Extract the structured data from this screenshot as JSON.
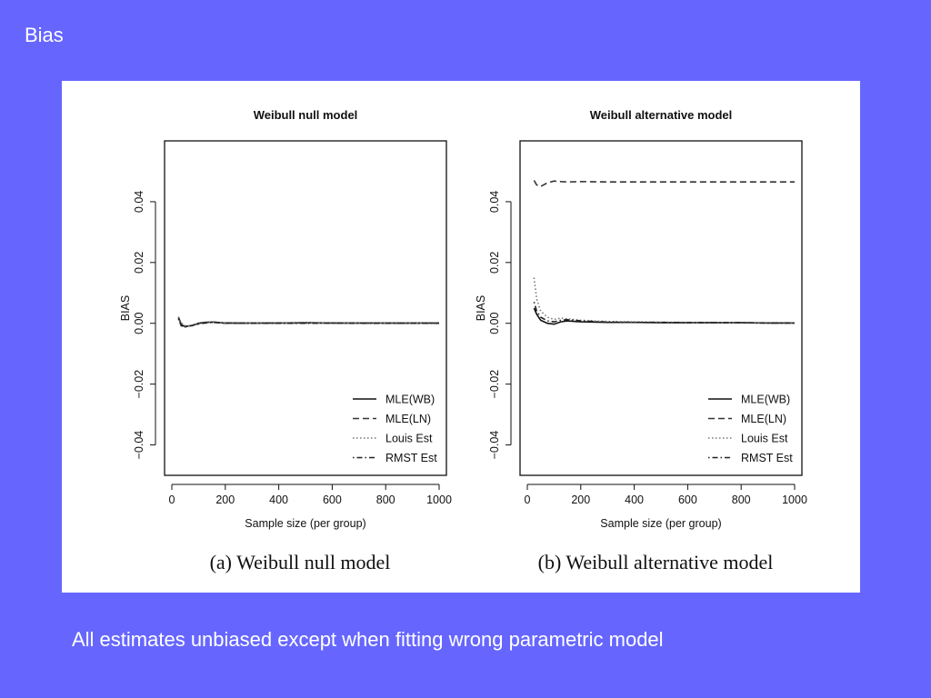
{
  "slide": {
    "title": "Bias",
    "caption": "All estimates unbiased except when fitting wrong parametric model"
  },
  "colors": {
    "background": "#6666ff",
    "panel": "#ffffff",
    "series": [
      "#111111",
      "#333333",
      "#777777",
      "#222222"
    ]
  },
  "chart_data": [
    {
      "type": "line",
      "title": "Weibull null model",
      "subcaption": "(a) Weibull null model",
      "xlabel": "Sample size (per group)",
      "ylabel": "BIAS",
      "xlim": [
        0,
        1000
      ],
      "ylim": [
        -0.05,
        0.06
      ],
      "xticks": [
        0,
        200,
        400,
        600,
        800,
        1000
      ],
      "xtick_labels": [
        "0",
        "200",
        "400",
        "600",
        "800",
        "1000"
      ],
      "yticks": [
        -0.04,
        -0.02,
        0.0,
        0.02,
        0.04
      ],
      "ytick_labels": [
        "−0.04",
        "−0.02",
        "0.00",
        "0.02",
        "0.04"
      ],
      "legend_position": "bottom-right",
      "x": [
        25,
        35,
        50,
        75,
        100,
        125,
        150,
        200,
        300,
        400,
        500,
        600,
        700,
        800,
        900,
        1000
      ],
      "series": [
        {
          "name": "MLE(WB)",
          "dash": "solid",
          "values": [
            0.002,
            -0.0005,
            -0.001,
            -0.0008,
            0.0,
            0.0003,
            0.0004,
            0.0001,
            0.0001,
            0.0001,
            0.0002,
            0.0001,
            0.0001,
            0.0001,
            0.0001,
            0.0001
          ]
        },
        {
          "name": "MLE(LN)",
          "dash": "dashed",
          "values": [
            0.0018,
            -0.0003,
            -0.0012,
            -0.0006,
            -0.0002,
            0.0002,
            0.0005,
            0.0,
            0.0,
            0.0001,
            0.0001,
            0.0001,
            0.0001,
            0.0,
            0.0,
            0.0
          ]
        },
        {
          "name": "Louis Est",
          "dash": "dotted",
          "values": [
            0.0022,
            0.0002,
            -0.0008,
            -0.0009,
            0.0001,
            0.0004,
            0.0003,
            0.0002,
            0.0001,
            0.0002,
            0.0001,
            0.0001,
            0.0001,
            0.0001,
            0.0001,
            0.0001
          ]
        },
        {
          "name": "RMST Est",
          "dash": "dotdash",
          "values": [
            0.0015,
            -0.0008,
            -0.0011,
            -0.0007,
            -0.0001,
            0.0001,
            0.0003,
            0.0001,
            0.0,
            0.0,
            0.0,
            0.0001,
            0.0,
            0.0,
            0.0,
            0.0
          ]
        }
      ]
    },
    {
      "type": "line",
      "title": "Weibull alternative model",
      "subcaption": "(b) Weibull alternative model",
      "xlabel": "Sample size (per group)",
      "ylabel": "BIAS",
      "xlim": [
        0,
        1000
      ],
      "ylim": [
        -0.05,
        0.06
      ],
      "xticks": [
        0,
        200,
        400,
        600,
        800,
        1000
      ],
      "xtick_labels": [
        "0",
        "200",
        "400",
        "600",
        "800",
        "1000"
      ],
      "yticks": [
        -0.04,
        -0.02,
        0.0,
        0.02,
        0.04
      ],
      "ytick_labels": [
        "−0.04",
        "−0.02",
        "0.00",
        "0.02",
        "0.04"
      ],
      "legend_position": "bottom-right",
      "x": [
        25,
        35,
        50,
        75,
        100,
        125,
        150,
        200,
        300,
        400,
        500,
        600,
        700,
        800,
        900,
        1000
      ],
      "series": [
        {
          "name": "MLE(WB)",
          "dash": "solid",
          "values": [
            0.005,
            0.003,
            0.001,
            0.0,
            -0.0003,
            0.0005,
            0.0008,
            0.0005,
            0.0003,
            0.0003,
            0.0002,
            0.0002,
            0.0002,
            0.0002,
            0.0001,
            0.0001
          ]
        },
        {
          "name": "MLE(LN)",
          "dash": "dashed",
          "values": [
            0.047,
            0.0455,
            0.045,
            0.0462,
            0.0468,
            0.0466,
            0.0465,
            0.0466,
            0.0465,
            0.0465,
            0.0465,
            0.0465,
            0.0465,
            0.0465,
            0.0465,
            0.0465
          ]
        },
        {
          "name": "Louis Est",
          "dash": "dotted",
          "values": [
            0.015,
            0.008,
            0.004,
            0.002,
            0.0013,
            0.0017,
            0.0015,
            0.001,
            0.0006,
            0.0005,
            0.0004,
            0.0003,
            0.0003,
            0.0002,
            0.0002,
            0.0002
          ]
        },
        {
          "name": "RMST Est",
          "dash": "dotdash",
          "values": [
            0.007,
            0.004,
            0.002,
            0.0008,
            0.0005,
            0.001,
            0.0012,
            0.0008,
            0.0004,
            0.0003,
            0.0003,
            0.0002,
            0.0002,
            0.0002,
            0.0001,
            0.0001
          ]
        }
      ]
    }
  ]
}
